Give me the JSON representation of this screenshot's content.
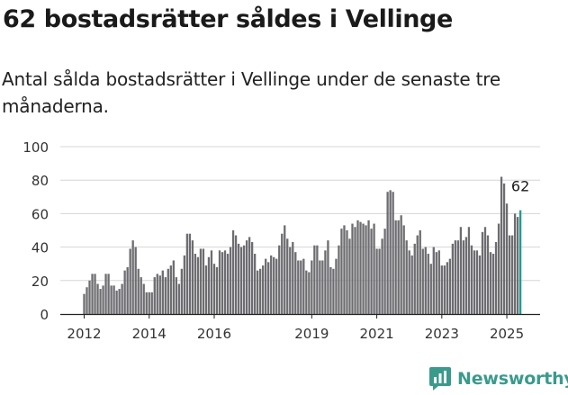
{
  "title": "62 bostadsrätter såldes i Vellinge",
  "subtitle": "Antal sålda bostadsrätter i Vellinge under de senaste tre månaderna.",
  "brand": "Newsworthy",
  "chart_data": {
    "type": "bar",
    "title": "62 bostadsrätter såldes i Vellinge",
    "xlabel": "",
    "ylabel": "",
    "ylim": [
      0,
      100
    ],
    "yticks": [
      "0",
      "20",
      "40",
      "60",
      "80",
      "100"
    ],
    "xticks": [
      {
        "label": "2012",
        "index": 0
      },
      {
        "label": "2014",
        "index": 24
      },
      {
        "label": "2016",
        "index": 48
      },
      {
        "label": "2019",
        "index": 84
      },
      {
        "label": "2021",
        "index": 108
      },
      {
        "label": "2023",
        "index": 132
      },
      {
        "label": "2025",
        "index": 156
      }
    ],
    "grid": true,
    "bar_color": "#6d6c70",
    "highlight_color": "#1b9e94",
    "highlight_index": 161,
    "last_value_label": "62",
    "values": [
      12,
      16,
      20,
      24,
      24,
      18,
      15,
      17,
      24,
      24,
      17,
      17,
      14,
      15,
      18,
      26,
      28,
      39,
      44,
      40,
      27,
      22,
      18,
      13,
      13,
      13,
      22,
      24,
      23,
      26,
      22,
      27,
      29,
      32,
      22,
      18,
      27,
      35,
      48,
      48,
      44,
      36,
      34,
      39,
      39,
      29,
      34,
      38,
      30,
      28,
      38,
      37,
      38,
      36,
      40,
      50,
      47,
      42,
      40,
      41,
      44,
      46,
      43,
      36,
      26,
      27,
      29,
      33,
      31,
      35,
      34,
      33,
      41,
      48,
      53,
      45,
      40,
      43,
      37,
      32,
      32,
      33,
      26,
      25,
      32,
      41,
      41,
      32,
      32,
      38,
      44,
      28,
      27,
      33,
      41,
      51,
      53,
      50,
      45,
      54,
      52,
      56,
      55,
      54,
      53,
      56,
      51,
      54,
      39,
      39,
      45,
      51,
      73,
      74,
      73,
      56,
      56,
      59,
      53,
      44,
      38,
      35,
      42,
      47,
      50,
      39,
      40,
      36,
      30,
      40,
      37,
      38,
      29,
      29,
      31,
      33,
      42,
      44,
      44,
      52,
      44,
      46,
      52,
      41,
      38,
      38,
      35,
      49,
      52,
      47,
      37,
      36,
      43,
      54,
      82,
      78,
      66,
      47,
      47,
      60,
      58,
      62
    ]
  }
}
